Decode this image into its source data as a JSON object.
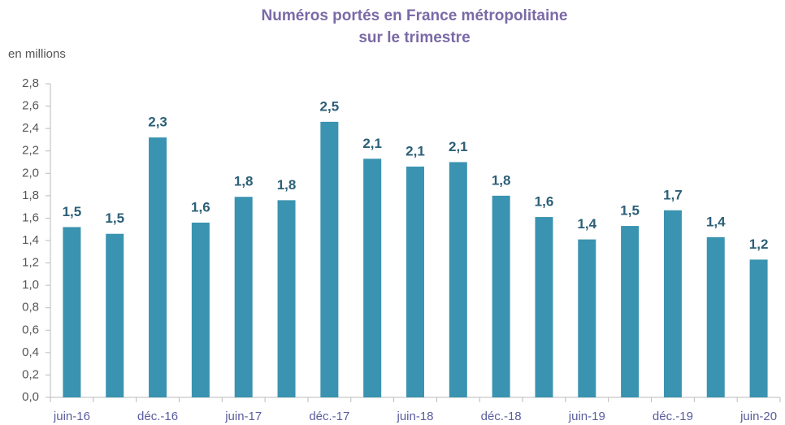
{
  "chart_data": {
    "type": "bar",
    "title": "Numéros portés en France métropolitaine",
    "subtitle": "sur le trimestre",
    "y_label": "en millions",
    "categories": [
      "juin-16",
      null,
      "déc.-16",
      null,
      "juin-17",
      null,
      "déc.-17",
      null,
      "juin-18",
      null,
      "déc.-18",
      null,
      "juin-19",
      null,
      "déc.-19",
      null,
      "juin-20"
    ],
    "values": [
      1.52,
      1.46,
      2.32,
      1.56,
      1.79,
      1.76,
      2.46,
      2.13,
      2.06,
      2.1,
      1.8,
      1.61,
      1.41,
      1.53,
      1.67,
      1.43,
      1.23
    ],
    "value_labels": [
      "1,5",
      "1,5",
      "2,3",
      "1,6",
      "1,8",
      "1,8",
      "2,5",
      "2,1",
      "2,1",
      "2,1",
      "1,8",
      "1,6",
      "1,4",
      "1,5",
      "1,7",
      "1,4",
      "1,2"
    ],
    "color": "#3a93b0",
    "ylim": [
      0,
      2.8
    ],
    "yticks": [
      {
        "value": 0,
        "label": "0,0"
      },
      {
        "value": 0.2,
        "label": "0,2"
      },
      {
        "value": 0.4,
        "label": "0,4"
      },
      {
        "value": 0.6,
        "label": "0,6"
      },
      {
        "value": 0.8,
        "label": "0,8"
      },
      {
        "value": 1.0,
        "label": "1,0"
      },
      {
        "value": 1.2,
        "label": "1,2"
      },
      {
        "value": 1.4,
        "label": "1,4"
      },
      {
        "value": 1.6,
        "label": "1,6"
      },
      {
        "value": 1.8,
        "label": "1,8"
      },
      {
        "value": 2.0,
        "label": "2,0"
      },
      {
        "value": 2.2,
        "label": "2,2"
      },
      {
        "value": 2.4,
        "label": "2,4"
      },
      {
        "value": 2.6,
        "label": "2,6"
      },
      {
        "value": 2.8,
        "label": "2,8"
      }
    ],
    "grid": false
  }
}
